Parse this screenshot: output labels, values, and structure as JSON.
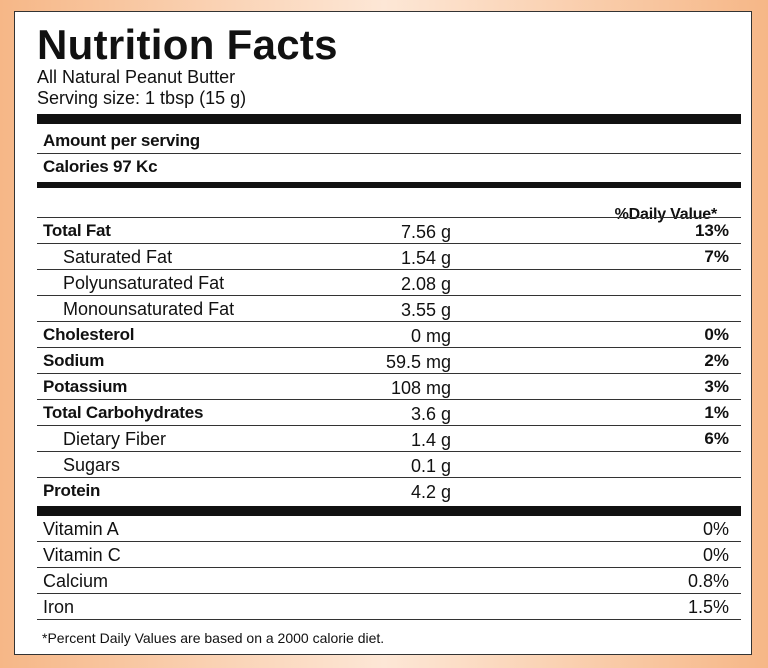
{
  "label": {
    "title": "Nutrition Facts",
    "product": "All Natural Peanut Butter",
    "serving_size": "Serving size: 1 tbsp (15 g)",
    "amount_per_serving": "Amount per serving",
    "calories": "Calories 97 Kc",
    "daily_value_header": "%Daily Value*"
  },
  "nutrients": [
    {
      "name": "Total Fat",
      "amount": "7.56 g",
      "dv": "13%"
    },
    {
      "name": "Saturated Fat",
      "amount": "1.54 g",
      "dv": "7%"
    },
    {
      "name": "Polyunsaturated Fat",
      "amount": "2.08 g",
      "dv": ""
    },
    {
      "name": "Monounsaturated Fat",
      "amount": "3.55 g",
      "dv": ""
    },
    {
      "name": "Cholesterol",
      "amount": "0 mg",
      "dv": "0%"
    },
    {
      "name": "Sodium",
      "amount": "59.5 mg",
      "dv": "2%"
    },
    {
      "name": "Potassium",
      "amount": "108 mg",
      "dv": "3%"
    },
    {
      "name": "Total Carbohydrates",
      "amount": "3.6 g",
      "dv": "1%"
    },
    {
      "name": "Dietary Fiber",
      "amount": "1.4 g",
      "dv": "6%"
    },
    {
      "name": "Sugars",
      "amount": "0.1 g",
      "dv": ""
    },
    {
      "name": "Protein",
      "amount": "4.2 g",
      "dv": ""
    }
  ],
  "vitamins": [
    {
      "name": "Vitamin A",
      "dv": "0%"
    },
    {
      "name": "Vitamin C",
      "dv": "0%"
    },
    {
      "name": "Calcium",
      "dv": "0.8%"
    },
    {
      "name": "Iron",
      "dv": "1.5%"
    }
  ],
  "footnote": "*Percent Daily Values are based on a 2000 calorie diet."
}
